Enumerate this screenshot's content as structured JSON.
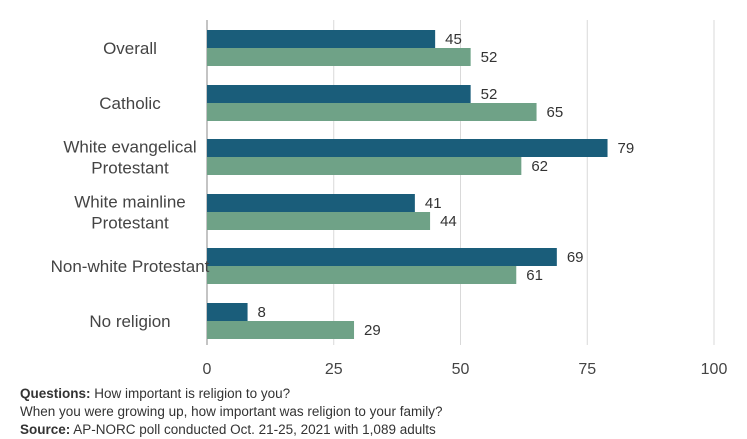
{
  "chart_data": {
    "type": "bar",
    "orientation": "horizontal",
    "categories": [
      [
        "Overall"
      ],
      [
        "Catholic"
      ],
      [
        "White evangelical",
        "Protestant"
      ],
      [
        "White mainline",
        "Protestant"
      ],
      [
        "Non-white Protestant"
      ],
      [
        "No religion"
      ]
    ],
    "series": [
      {
        "color": "#1a5d7a",
        "values": [
          45,
          52,
          79,
          41,
          69,
          8
        ]
      },
      {
        "color": "#6fa287",
        "values": [
          52,
          65,
          62,
          44,
          61,
          29
        ]
      }
    ],
    "xlim": [
      0,
      100
    ],
    "xticks": [
      "0",
      "25",
      "50",
      "75",
      "100"
    ],
    "grid": true
  },
  "notes": {
    "questions_label": "Questions:",
    "question_1": "How important is religion to you?",
    "question_2": "When you were growing up, how important was religion to your family?",
    "source_label": "Source:",
    "source_text": "AP-NORC poll conducted Oct. 21-25, 2021 with 1,089 adults"
  }
}
